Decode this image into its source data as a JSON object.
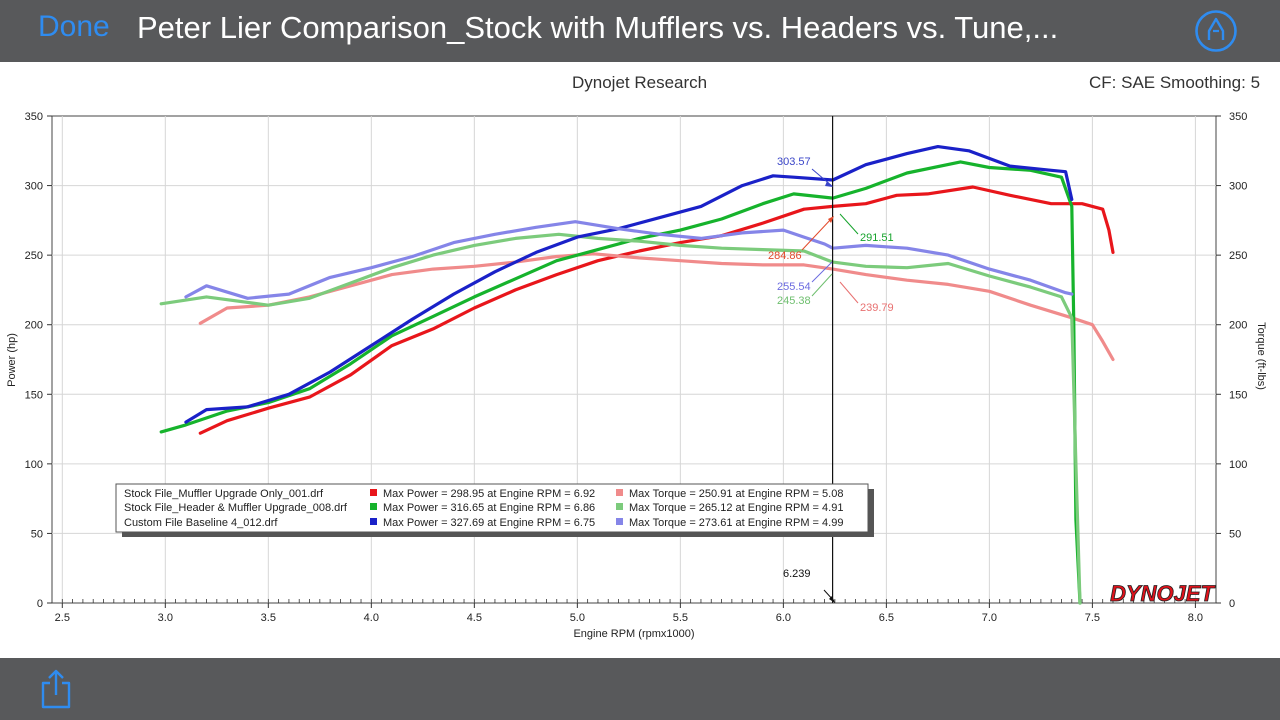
{
  "viewer": {
    "done_label": "Done",
    "title": "Peter Lier Comparison_Stock with Mufflers vs. Headers vs. Tune,...",
    "markup_icon": "markup-pen-icon",
    "share_icon": "share-icon"
  },
  "chart_header": {
    "center": "Dynojet Research",
    "right": "CF: SAE Smoothing: 5"
  },
  "chart_data": {
    "type": "line",
    "xlabel": "Engine RPM (rpmx1000)",
    "ylabel": "Power (hp)",
    "y2label": "Torque (ft-lbs)",
    "xlim": [
      2.45,
      8.1
    ],
    "ylim": [
      0,
      350
    ],
    "xticks": [
      "2.5",
      "3.0",
      "3.5",
      "4.0",
      "4.5",
      "5.0",
      "5.5",
      "6.0",
      "6.5",
      "7.0",
      "7.5",
      "8.0"
    ],
    "yticks": [
      "0",
      "50",
      "100",
      "150",
      "200",
      "250",
      "300",
      "350"
    ],
    "grid": true,
    "cursor_x": 6.239,
    "cursor_label": "6.239",
    "logo_text": "DYNOJET",
    "series": [
      {
        "name": "Stock File_Muffler Upgrade Only_001.drf",
        "metric": "power",
        "color": "#e8161b",
        "x": [
          3.17,
          3.3,
          3.5,
          3.7,
          3.9,
          4.1,
          4.3,
          4.5,
          4.7,
          4.9,
          5.1,
          5.3,
          5.5,
          5.7,
          5.9,
          6.1,
          6.24,
          6.4,
          6.55,
          6.7,
          6.92,
          7.1,
          7.3,
          7.45,
          7.55,
          7.58,
          7.6
        ],
        "y": [
          122,
          131,
          140,
          148,
          164,
          185,
          197,
          212,
          225,
          236,
          246,
          253,
          259,
          264,
          273,
          283,
          285,
          287,
          293,
          294,
          299,
          293,
          287,
          287,
          283,
          268,
          252
        ]
      },
      {
        "name": "Stock File_Muffler Upgrade Only_001.drf",
        "metric": "torque",
        "color": "#f08b8b",
        "x": [
          3.17,
          3.3,
          3.5,
          3.7,
          3.9,
          4.1,
          4.3,
          4.5,
          4.7,
          4.9,
          5.08,
          5.3,
          5.5,
          5.7,
          5.9,
          6.1,
          6.24,
          6.4,
          6.6,
          6.8,
          7.0,
          7.2,
          7.4,
          7.5,
          7.55,
          7.6
        ],
        "y": [
          201,
          212,
          214,
          220,
          228,
          236,
          240,
          242,
          245,
          249,
          251,
          248,
          246,
          244,
          243,
          243,
          240,
          236,
          232,
          229,
          224,
          214,
          205,
          200,
          188,
          175
        ]
      },
      {
        "name": "Stock File_Header & Muffler Upgrade_008.drf",
        "metric": "power",
        "color": "#16b32c",
        "x": [
          2.98,
          3.1,
          3.3,
          3.5,
          3.7,
          3.9,
          4.1,
          4.3,
          4.5,
          4.7,
          4.9,
          5.1,
          5.3,
          5.5,
          5.7,
          5.9,
          6.05,
          6.24,
          6.4,
          6.6,
          6.86,
          7.0,
          7.2,
          7.35,
          7.4,
          7.41,
          7.42,
          7.44
        ],
        "y": [
          123,
          128,
          138,
          144,
          154,
          172,
          192,
          206,
          220,
          233,
          246,
          254,
          262,
          268,
          276,
          287,
          294,
          291,
          298,
          309,
          317,
          313,
          311,
          306,
          285,
          200,
          60,
          0
        ]
      },
      {
        "name": "Stock File_Header & Muffler Upgrade_008.drf",
        "metric": "torque",
        "color": "#7ccb7c",
        "x": [
          2.98,
          3.2,
          3.5,
          3.7,
          3.9,
          4.1,
          4.3,
          4.5,
          4.7,
          4.91,
          5.1,
          5.3,
          5.5,
          5.7,
          5.9,
          6.1,
          6.24,
          6.4,
          6.6,
          6.8,
          7.0,
          7.2,
          7.35,
          7.4,
          7.42,
          7.44
        ],
        "y": [
          215,
          220,
          214,
          219,
          230,
          241,
          250,
          257,
          262,
          265,
          262,
          260,
          257,
          255,
          254,
          253,
          245,
          242,
          241,
          244,
          235,
          227,
          220,
          205,
          100,
          0
        ]
      },
      {
        "name": "Custom File Baseline 4_012.drf",
        "metric": "power",
        "color": "#1a21c8",
        "x": [
          3.1,
          3.2,
          3.4,
          3.6,
          3.8,
          4.0,
          4.2,
          4.4,
          4.6,
          4.8,
          5.0,
          5.2,
          5.4,
          5.6,
          5.8,
          5.95,
          6.05,
          6.24,
          6.4,
          6.6,
          6.75,
          6.9,
          7.1,
          7.3,
          7.37,
          7.4
        ],
        "y": [
          130,
          139,
          141,
          150,
          166,
          185,
          204,
          222,
          238,
          252,
          263,
          269,
          277,
          285,
          300,
          307,
          306,
          304,
          315,
          323,
          328,
          325,
          314,
          311,
          310,
          290
        ]
      },
      {
        "name": "Custom File Baseline 4_012.drf",
        "metric": "torque",
        "color": "#8585e8",
        "x": [
          3.1,
          3.2,
          3.4,
          3.6,
          3.8,
          4.0,
          4.2,
          4.4,
          4.6,
          4.8,
          4.99,
          5.2,
          5.4,
          5.6,
          5.8,
          6.0,
          6.1,
          6.2,
          6.24,
          6.4,
          6.6,
          6.8,
          7.0,
          7.2,
          7.37,
          7.4
        ],
        "y": [
          220,
          228,
          219,
          222,
          234,
          241,
          249,
          259,
          265,
          270,
          274,
          269,
          265,
          262,
          266,
          268,
          263,
          258,
          255,
          257,
          255,
          250,
          240,
          232,
          223,
          222
        ]
      }
    ],
    "annotations": [
      {
        "text": "303.57",
        "color": "#3a45c8"
      },
      {
        "text": "291.51",
        "color": "#16a32c"
      },
      {
        "text": "284.86",
        "color": "#e34a2b"
      },
      {
        "text": "255.54",
        "color": "#6b6be0"
      },
      {
        "text": "245.38",
        "color": "#6fbf6f"
      },
      {
        "text": "239.79",
        "color": "#e87070"
      }
    ],
    "legend": {
      "placement": "bottom-left",
      "rows": [
        {
          "file": "Stock File_Muffler Upgrade Only_001.drf",
          "power": "Max Power = 298.95 at Engine RPM = 6.92",
          "torque": "Max Torque = 250.91 at Engine RPM = 5.08",
          "power_color": "#e8161b",
          "torque_color": "#f08b8b"
        },
        {
          "file": "Stock File_Header & Muffler Upgrade_008.drf",
          "power": "Max Power = 316.65 at Engine RPM = 6.86",
          "torque": "Max Torque = 265.12 at Engine RPM = 4.91",
          "power_color": "#16b32c",
          "torque_color": "#7ccb7c"
        },
        {
          "file": "Custom File Baseline 4_012.drf",
          "power": "Max Power = 327.69 at Engine RPM = 6.75",
          "torque": "Max Torque = 273.61 at Engine RPM = 4.99",
          "power_color": "#1a21c8",
          "torque_color": "#8585e8"
        }
      ]
    }
  }
}
